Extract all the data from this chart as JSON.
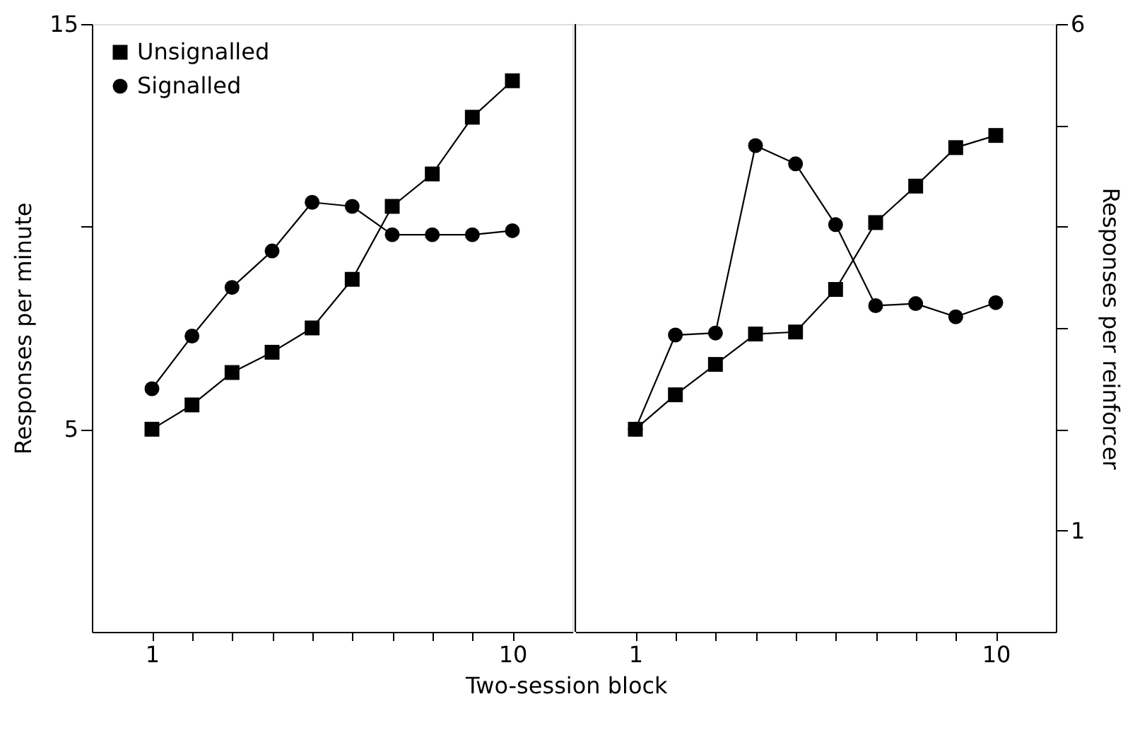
{
  "chart_data": [
    {
      "type": "line",
      "xlabel": "Two-session block",
      "ylabel": "Responses per minute",
      "x": [
        1,
        2,
        3,
        4,
        5,
        6,
        7,
        8,
        9,
        10
      ],
      "xlim": [
        -0.5,
        11.5
      ],
      "xticks": [
        1,
        {
          "value": 2,
          "label": null
        },
        {
          "value": 3,
          "label": null
        },
        {
          "value": 4,
          "label": null
        },
        {
          "value": 5,
          "label": null
        },
        {
          "value": 6,
          "label": null
        },
        {
          "value": 7,
          "label": null
        },
        {
          "value": 8,
          "label": null
        },
        {
          "value": 9,
          "label": null
        },
        10
      ],
      "ylim": [
        0,
        15
      ],
      "yticks": [
        5,
        {
          "value": 10,
          "label": null
        },
        15
      ],
      "legend": "top left",
      "grid": false,
      "line_style": "solid",
      "series": [
        {
          "name": "Unsignalled",
          "color": "#000000",
          "marker": "square",
          "values": [
            5.0,
            5.6,
            6.4,
            6.9,
            7.5,
            8.7,
            10.5,
            11.3,
            12.7,
            13.6
          ]
        },
        {
          "name": "Signalled",
          "color": "#000000",
          "marker": "circle",
          "values": [
            6.0,
            7.3,
            8.5,
            9.4,
            10.6,
            10.5,
            9.8,
            9.8,
            9.8,
            9.9
          ]
        }
      ]
    },
    {
      "type": "line",
      "y2label": "Responses per reinforcer",
      "x": [
        1,
        2,
        3,
        4,
        5,
        6,
        7,
        8,
        9,
        10
      ],
      "xlim": [
        -0.5,
        11.5
      ],
      "xticks": [
        1,
        {
          "value": 2,
          "label": null
        },
        {
          "value": 3,
          "label": null
        },
        {
          "value": 4,
          "label": null
        },
        {
          "value": 5,
          "label": null
        },
        {
          "value": 6,
          "label": null
        },
        {
          "value": 7,
          "label": null
        },
        {
          "value": 8,
          "label": null
        },
        {
          "value": 9,
          "label": null
        },
        10
      ],
      "y2lim": [
        0,
        6
      ],
      "y2ticks": [
        1,
        {
          "value": 2,
          "label": null
        },
        {
          "value": 3,
          "label": null
        },
        {
          "value": 4,
          "label": null
        },
        {
          "value": 5,
          "label": null
        },
        6
      ],
      "legend": false,
      "grid": false,
      "line_style": "solid",
      "series": [
        {
          "color": "#000000",
          "marker": "square",
          "axis": "y2",
          "values": [
            2.0,
            2.34,
            2.64,
            2.94,
            2.96,
            3.38,
            4.04,
            4.4,
            4.78,
            4.9
          ]
        },
        {
          "color": "#000000",
          "marker": "circle",
          "axis": "y2",
          "values": [
            2.0,
            2.93,
            2.95,
            4.8,
            4.62,
            4.02,
            3.22,
            3.24,
            3.11,
            3.25
          ]
        }
      ]
    }
  ]
}
